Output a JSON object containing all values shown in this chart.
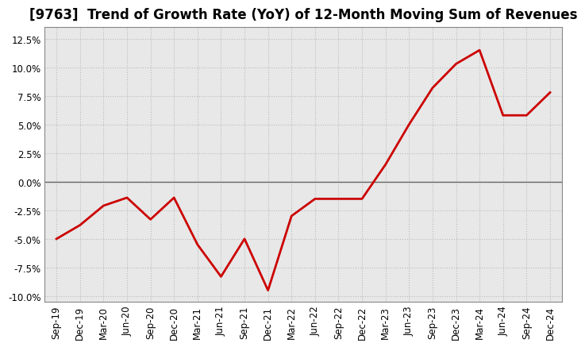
{
  "title": "[9763]  Trend of Growth Rate (YoY) of 12-Month Moving Sum of Revenues",
  "x_labels": [
    "Sep-19",
    "Dec-19",
    "Mar-20",
    "Jun-20",
    "Sep-20",
    "Dec-20",
    "Mar-21",
    "Jun-21",
    "Sep-21",
    "Dec-21",
    "Mar-22",
    "Jun-22",
    "Sep-22",
    "Dec-22",
    "Mar-23",
    "Jun-23",
    "Sep-23",
    "Dec-23",
    "Mar-24",
    "Jun-24",
    "Sep-24",
    "Dec-24"
  ],
  "y_values": [
    -5.0,
    -3.8,
    -2.1,
    -1.4,
    -3.3,
    -1.4,
    -5.5,
    -8.3,
    -5.0,
    -9.5,
    -3.0,
    -1.5,
    -1.5,
    -1.5,
    1.5,
    5.0,
    8.2,
    10.3,
    11.5,
    5.8,
    5.8,
    7.8
  ],
  "line_color": "#cc0000",
  "line_width": 2.0,
  "background_color": "#ffffff",
  "plot_bg_color": "#e8e8e8",
  "grid_color": "#bbbbbb",
  "zero_line_color": "#666666",
  "ylim": [
    -10.5,
    13.5
  ],
  "yticks": [
    -10.0,
    -7.5,
    -5.0,
    -2.5,
    0.0,
    2.5,
    5.0,
    7.5,
    10.0,
    12.5
  ],
  "title_fontsize": 12,
  "tick_fontsize": 8.5
}
